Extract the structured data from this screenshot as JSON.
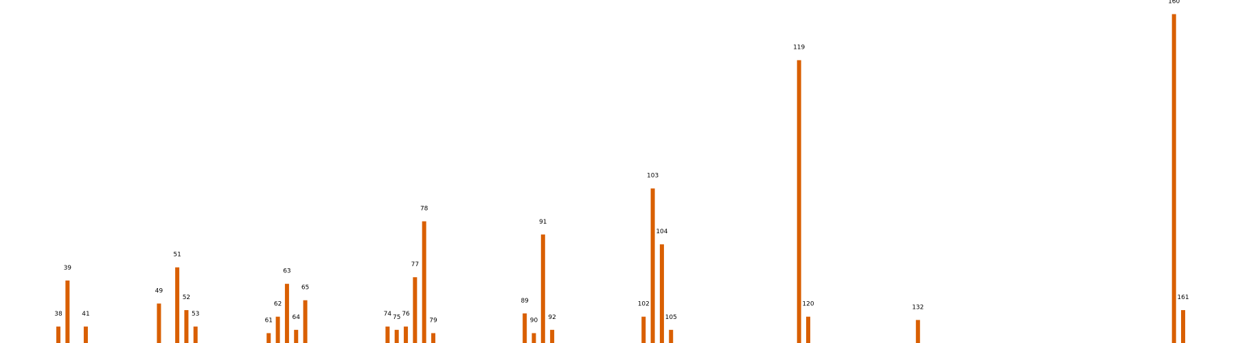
{
  "chart_data": {
    "type": "bar",
    "title": "",
    "xlabel": "",
    "ylabel": "",
    "axes_visible": false,
    "grid": false,
    "x_range": [
      38,
      161
    ],
    "y_range": [
      0,
      199
    ],
    "bar_color": "#d95f02",
    "points": [
      {
        "x": 38,
        "y": 10,
        "label": "38"
      },
      {
        "x": 39,
        "y": 38,
        "label": "39"
      },
      {
        "x": 41,
        "y": 10,
        "label": "41"
      },
      {
        "x": 49,
        "y": 24,
        "label": "49"
      },
      {
        "x": 51,
        "y": 46,
        "label": "51"
      },
      {
        "x": 52,
        "y": 20,
        "label": "52"
      },
      {
        "x": 53,
        "y": 10,
        "label": "53"
      },
      {
        "x": 61,
        "y": 6,
        "label": "61"
      },
      {
        "x": 62,
        "y": 16,
        "label": "62"
      },
      {
        "x": 63,
        "y": 36,
        "label": "63"
      },
      {
        "x": 64,
        "y": 8,
        "label": "64"
      },
      {
        "x": 65,
        "y": 26,
        "label": "65"
      },
      {
        "x": 74,
        "y": 10,
        "label": "74"
      },
      {
        "x": 75,
        "y": 8,
        "label": "75"
      },
      {
        "x": 76,
        "y": 10,
        "label": "76"
      },
      {
        "x": 77,
        "y": 40,
        "label": "77"
      },
      {
        "x": 78,
        "y": 74,
        "label": "78"
      },
      {
        "x": 79,
        "y": 6,
        "label": "79"
      },
      {
        "x": 89,
        "y": 18,
        "label": "89"
      },
      {
        "x": 90,
        "y": 6,
        "label": "90"
      },
      {
        "x": 91,
        "y": 66,
        "label": "91"
      },
      {
        "x": 92,
        "y": 8,
        "label": "92"
      },
      {
        "x": 102,
        "y": 16,
        "label": "102"
      },
      {
        "x": 103,
        "y": 94,
        "label": "103"
      },
      {
        "x": 104,
        "y": 60,
        "label": "104"
      },
      {
        "x": 105,
        "y": 8,
        "label": "105"
      },
      {
        "x": 119,
        "y": 172,
        "label": "119"
      },
      {
        "x": 120,
        "y": 16,
        "label": "120"
      },
      {
        "x": 132,
        "y": 14,
        "label": "132"
      },
      {
        "x": 160,
        "y": 200,
        "label": "160"
      },
      {
        "x": 161,
        "y": 20,
        "label": "161"
      }
    ]
  }
}
